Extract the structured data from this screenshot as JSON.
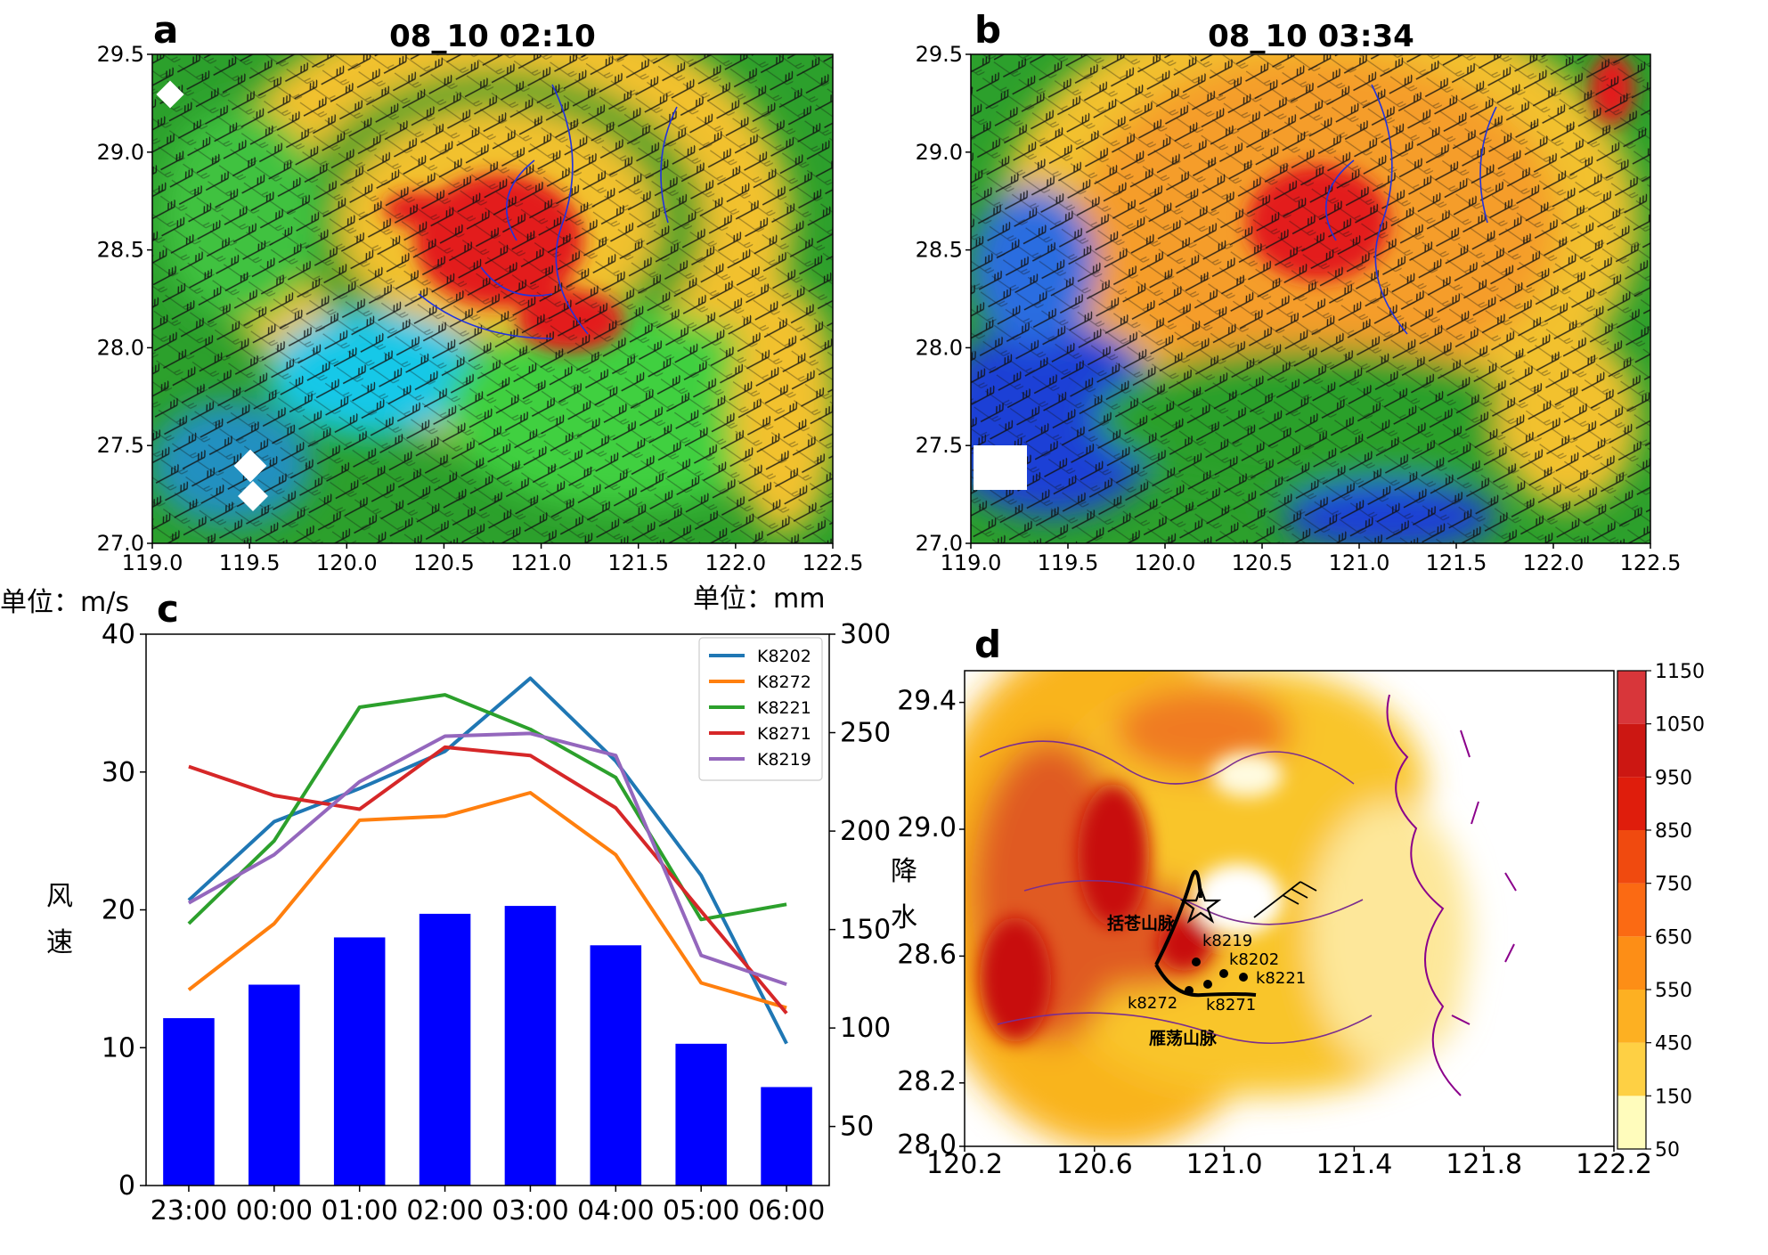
{
  "panels": {
    "a": {
      "label": "a",
      "title": "08_10 02:10",
      "xticks": [
        "119.0",
        "119.5",
        "120.0",
        "120.5",
        "121.0",
        "121.5",
        "122.0",
        "122.5"
      ],
      "yticks": [
        "27.0",
        "27.5",
        "28.0",
        "28.5",
        "29.0",
        "29.5"
      ]
    },
    "b": {
      "label": "b",
      "title": "08_10 03:34",
      "xticks": [
        "119.0",
        "119.5",
        "120.0",
        "120.5",
        "121.0",
        "121.5",
        "122.0",
        "122.5"
      ],
      "yticks": [
        "27.0",
        "27.5",
        "28.0",
        "28.5",
        "29.0",
        "29.5"
      ]
    },
    "c": {
      "label": "c",
      "unit_left": "单位：m/s",
      "unit_right": "单位：mm",
      "ylabel_left": [
        "风",
        "速"
      ],
      "ylabel_right": [
        "降",
        "水"
      ]
    },
    "d": {
      "label": "d",
      "xticks": [
        "120.2",
        "120.6",
        "121.0",
        "121.4",
        "121.8",
        "122.2"
      ],
      "yticks": [
        "28.0",
        "28.2",
        "28.6",
        "29.0",
        "29.4"
      ],
      "mountains": [
        "括苍山脉",
        "雁荡山脉"
      ],
      "stations": [
        "k8219",
        "k8202",
        "k8221",
        "k8272",
        "k8271"
      ],
      "colorbar_ticks": [
        "50",
        "150",
        "450",
        "550",
        "650",
        "750",
        "850",
        "950",
        "1050",
        "1150"
      ]
    }
  },
  "chart_data": [
    {
      "panel": "a",
      "type": "heatmap",
      "title": "08_10 02:10",
      "xlim": [
        119.0,
        122.5
      ],
      "ylim": [
        27.0,
        29.5
      ]
    },
    {
      "panel": "b",
      "type": "heatmap",
      "title": "08_10 03:34",
      "xlim": [
        119.0,
        122.5
      ],
      "ylim": [
        27.0,
        29.5
      ]
    },
    {
      "panel": "c",
      "type": "line",
      "categories": [
        "23:00",
        "00:00",
        "01:00",
        "02:00",
        "03:00",
        "04:00",
        "05:00",
        "06:00"
      ],
      "ylim": [
        0,
        40
      ],
      "yticks": [
        0,
        10,
        20,
        30,
        40
      ],
      "y2lim": [
        20,
        300
      ],
      "y2ticks": [
        50,
        100,
        150,
        200,
        250,
        300
      ],
      "series": [
        {
          "name": "K8202",
          "color": "#1f77b4",
          "values": [
            20.7,
            26.4,
            28.8,
            31.5,
            36.8,
            30.8,
            22.5,
            10.3
          ]
        },
        {
          "name": "K8272",
          "color": "#ff7f0e",
          "values": [
            14.2,
            19.0,
            26.5,
            26.8,
            28.5,
            24.0,
            14.7,
            12.9
          ]
        },
        {
          "name": "K8221",
          "color": "#2ca02c",
          "values": [
            19.0,
            25.0,
            34.7,
            35.6,
            33.1,
            29.6,
            19.3,
            20.4
          ]
        },
        {
          "name": "K8271",
          "color": "#d62728",
          "values": [
            30.4,
            28.3,
            27.3,
            31.8,
            31.2,
            27.4,
            19.9,
            12.5
          ]
        },
        {
          "name": "K8219",
          "color": "#9467bd",
          "values": [
            20.5,
            24.0,
            29.3,
            32.6,
            32.8,
            31.2,
            16.7,
            14.6
          ]
        }
      ],
      "bars": {
        "color": "#0000ff",
        "values": [
          105,
          122,
          146,
          158,
          162,
          142,
          92,
          70
        ]
      }
    },
    {
      "panel": "d",
      "type": "heatmap",
      "xlim": [
        120.2,
        122.2
      ],
      "ylim": [
        28.0,
        29.5
      ]
    }
  ]
}
